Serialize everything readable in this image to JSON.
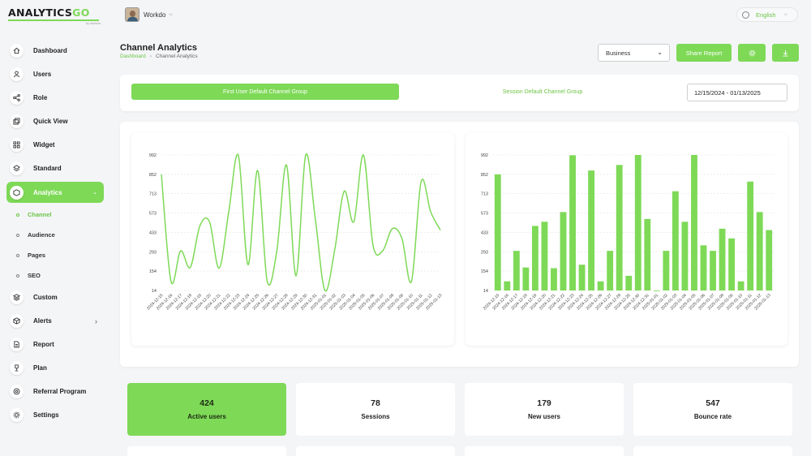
{
  "logo": {
    "text_main": "ANALYTICS",
    "text_accent": "GO",
    "tagline": "by workdo"
  },
  "topbar": {
    "user_name": "Workdo",
    "language": "English"
  },
  "sidebar": {
    "items": [
      {
        "label": "Dashboard",
        "icon": "home-icon"
      },
      {
        "label": "Users",
        "icon": "user-icon"
      },
      {
        "label": "Role",
        "icon": "share-icon"
      },
      {
        "label": "Quick View",
        "icon": "copy-icon"
      },
      {
        "label": "Widget",
        "icon": "grid-icon"
      },
      {
        "label": "Standard",
        "icon": "layers-icon"
      },
      {
        "label": "Analytics",
        "icon": "box-icon"
      }
    ],
    "analytics_sub": [
      "Channel",
      "Audience",
      "Pages",
      "SEO"
    ],
    "items_after": [
      {
        "label": "Custom",
        "icon": "stack-icon"
      },
      {
        "label": "Alerts",
        "icon": "cube-icon"
      },
      {
        "label": "Report",
        "icon": "file-icon"
      },
      {
        "label": "Plan",
        "icon": "trophy-icon"
      },
      {
        "label": "Referral Program",
        "icon": "target-icon"
      },
      {
        "label": "Settings",
        "icon": "gear-icon"
      }
    ]
  },
  "header": {
    "title": "Channel Analytics",
    "breadcrumb_home": "Dashboard",
    "breadcrumb_current": "Channel Analytics",
    "select_value": "Business",
    "share_label": "Share Report"
  },
  "filters": {
    "active": "First User Default Channel Group",
    "inactive": "Session Default Channel Group",
    "date_range": "12/15/2024 - 01/13/2025"
  },
  "chart_data": [
    {
      "type": "line",
      "color": "#7ed957",
      "x": [
        "2024-12-15",
        "2024-12-16",
        "2024-12-17",
        "2024-12-18",
        "2024-12-19",
        "2024-12-20",
        "2024-12-21",
        "2024-12-22",
        "2024-12-23",
        "2024-12-24",
        "2024-12-25",
        "2024-12-26",
        "2024-12-27",
        "2024-12-28",
        "2024-12-29",
        "2024-12-30",
        "2024-12-31",
        "2025-01-01",
        "2025-01-02",
        "2025-01-03",
        "2025-01-04",
        "2025-01-05",
        "2025-01-06",
        "2025-01-07",
        "2025-01-08",
        "2025-01-09",
        "2025-01-10",
        "2025-01-11",
        "2025-01-12",
        "2025-01-13"
      ],
      "y": [
        852,
        80,
        300,
        180,
        480,
        510,
        175,
        580,
        990,
        200,
        880,
        80,
        300,
        920,
        120,
        992,
        530,
        14,
        300,
        730,
        510,
        992,
        340,
        300,
        460,
        390,
        80,
        800,
        580,
        450
      ],
      "yticks": [
        14,
        154,
        293,
        433,
        573,
        713,
        852,
        992
      ],
      "ylim": [
        14,
        992
      ]
    },
    {
      "type": "bar",
      "color": "#7ed957",
      "categories": [
        "2024-12-15",
        "2024-12-16",
        "2024-12-17",
        "2024-12-18",
        "2024-12-19",
        "2024-12-20",
        "2024-12-21",
        "2024-12-22",
        "2024-12-23",
        "2024-12-24",
        "2024-12-25",
        "2024-12-26",
        "2024-12-27",
        "2024-12-28",
        "2024-12-29",
        "2024-12-30",
        "2024-12-31",
        "2025-01-01",
        "2025-01-02",
        "2025-01-03",
        "2025-01-04",
        "2025-01-05",
        "2025-01-06",
        "2025-01-07",
        "2025-01-08",
        "2025-01-09",
        "2025-01-10",
        "2025-01-11",
        "2025-01-12",
        "2025-01-13"
      ],
      "values": [
        852,
        80,
        300,
        180,
        480,
        510,
        175,
        580,
        990,
        200,
        880,
        80,
        300,
        920,
        120,
        992,
        530,
        14,
        300,
        730,
        510,
        992,
        340,
        300,
        460,
        390,
        80,
        800,
        580,
        450
      ],
      "yticks": [
        14,
        154,
        293,
        433,
        573,
        713,
        852,
        992
      ],
      "ylim": [
        14,
        992
      ]
    }
  ],
  "stats": [
    {
      "value": "424",
      "label": "Active users"
    },
    {
      "value": "78",
      "label": "Sessions"
    },
    {
      "value": "179",
      "label": "New users"
    },
    {
      "value": "547",
      "label": "Bounce rate"
    }
  ]
}
